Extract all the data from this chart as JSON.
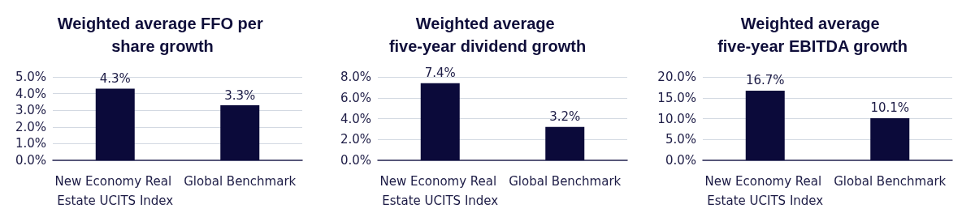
{
  "chart_data": [
    {
      "type": "bar",
      "title": "Weighted average FFO per share growth",
      "categories": [
        "New Economy Real Estate UCITS Index",
        "Global Benchmark"
      ],
      "values": [
        4.3,
        3.3
      ],
      "value_labels": [
        "4.3%",
        "3.3%"
      ],
      "color": "#0b0a3a",
      "ylim": [
        0,
        5
      ],
      "yticks": [
        {
          "value": 0,
          "label": "0.0%"
        },
        {
          "value": 1,
          "label": "1.0%"
        },
        {
          "value": 2,
          "label": "2.0%"
        },
        {
          "value": 3,
          "label": "3.0%"
        },
        {
          "value": 4,
          "label": "4.0%"
        },
        {
          "value": 5,
          "label": "5.0%"
        }
      ],
      "grid": "y"
    },
    {
      "type": "bar",
      "title": "Weighted average five-year dividend growth",
      "categories": [
        "New Economy Real Estate UCITS Index",
        "Global Benchmark"
      ],
      "values": [
        7.4,
        3.2
      ],
      "value_labels": [
        "7.4%",
        "3.2%"
      ],
      "color": "#0b0a3a",
      "ylim": [
        0,
        8
      ],
      "yticks": [
        {
          "value": 0,
          "label": "0.0%"
        },
        {
          "value": 2,
          "label": "2.0%"
        },
        {
          "value": 4,
          "label": "4.0%"
        },
        {
          "value": 6,
          "label": "6.0%"
        },
        {
          "value": 8,
          "label": "8.0%"
        }
      ],
      "grid": "y"
    },
    {
      "type": "bar",
      "title": "Weighted average five-year EBITDA growth",
      "categories": [
        "New Economy Real Estate UCITS Index",
        "Global Benchmark"
      ],
      "values": [
        16.7,
        10.1
      ],
      "value_labels": [
        "16.7%",
        "10.1%"
      ],
      "color": "#0b0a3a",
      "ylim": [
        0,
        20
      ],
      "yticks": [
        {
          "value": 0,
          "label": "0.0%"
        },
        {
          "value": 5,
          "label": "5.0%"
        },
        {
          "value": 10,
          "label": "10.0%"
        },
        {
          "value": 15,
          "label": "15.0%"
        },
        {
          "value": 20,
          "label": "20.0%"
        }
      ],
      "grid": "y"
    }
  ]
}
